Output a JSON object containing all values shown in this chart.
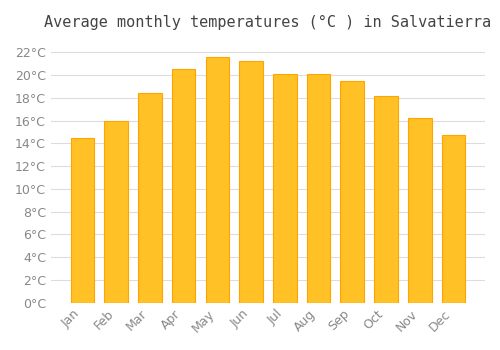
{
  "title": "Average monthly temperatures (°C ) in Salvatierra",
  "months": [
    "Jan",
    "Feb",
    "Mar",
    "Apr",
    "May",
    "Jun",
    "Jul",
    "Aug",
    "Sep",
    "Oct",
    "Nov",
    "Dec"
  ],
  "values": [
    14.5,
    16.0,
    18.4,
    20.5,
    21.6,
    21.2,
    20.1,
    20.1,
    19.5,
    18.2,
    16.2,
    14.7
  ],
  "bar_color": "#FFC125",
  "bar_edge_color": "#FFA500",
  "background_color": "#ffffff",
  "grid_color": "#dddddd",
  "text_color": "#888888",
  "ylim": [
    0,
    23
  ],
  "ytick_step": 2,
  "title_fontsize": 11,
  "tick_fontsize": 9
}
